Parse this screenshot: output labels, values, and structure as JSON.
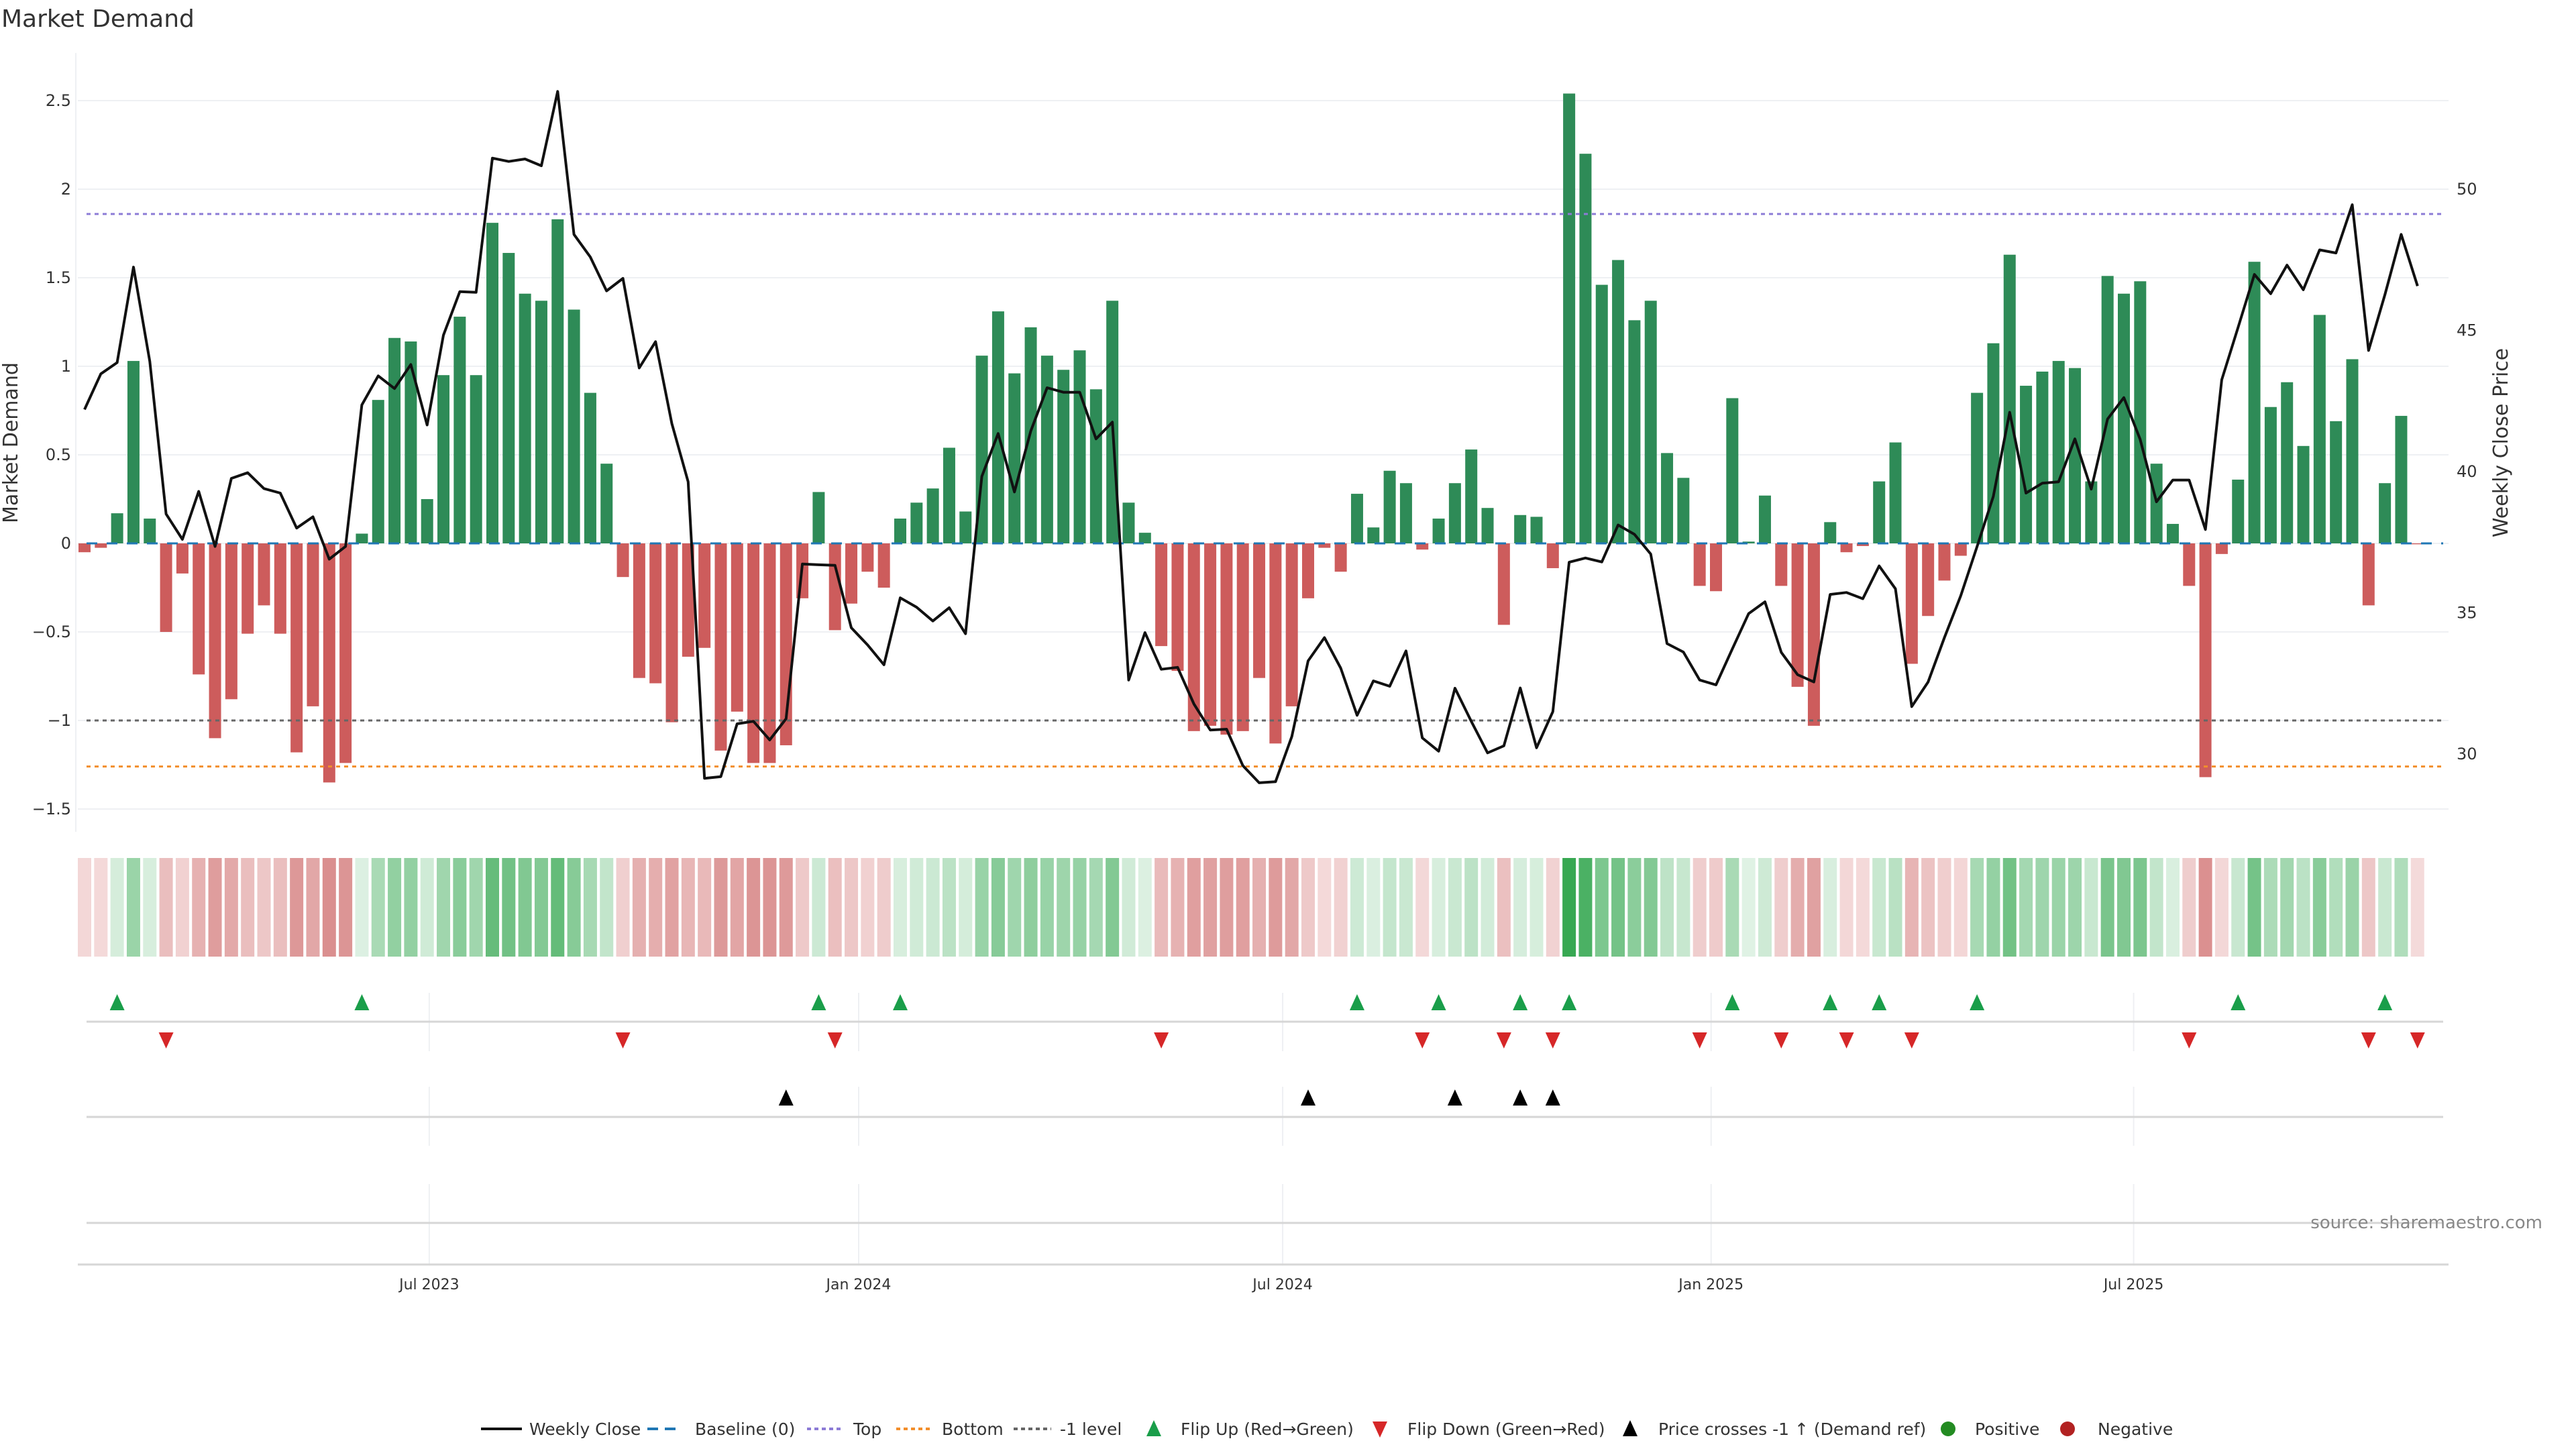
{
  "chart_data": {
    "type": "bar",
    "title": "Market Demand",
    "ylabel": "Market Demand",
    "y2label": "Weekly Close Price",
    "ylim": [
      -1.62,
      2.78
    ],
    "y2lim": [
      27.5,
      54.3
    ],
    "yticks": [
      {
        "value": 2.5,
        "label": "2.5"
      },
      {
        "value": 2,
        "label": "2"
      },
      {
        "value": 1.5,
        "label": "1.5"
      },
      {
        "value": 1,
        "label": "1"
      },
      {
        "value": 0.5,
        "label": "0.5"
      },
      {
        "value": 0,
        "label": "0"
      },
      {
        "value": -0.5,
        "label": "−0.5"
      },
      {
        "value": -1,
        "label": "−1"
      },
      {
        "value": -1.5,
        "label": "−1.5"
      }
    ],
    "y2ticks": [
      {
        "value": 50,
        "label": "50"
      },
      {
        "value": 45,
        "label": "45"
      },
      {
        "value": 40,
        "label": "40"
      },
      {
        "value": 35,
        "label": "35"
      },
      {
        "value": 30,
        "label": "30"
      }
    ],
    "x_ticks": [
      {
        "week_index": 21.13,
        "label": "Jul 2023"
      },
      {
        "week_index": 47.45,
        "label": "Jan 2024"
      },
      {
        "week_index": 73.44,
        "label": "Jul 2024"
      },
      {
        "week_index": 99.7,
        "label": "Jan 2025"
      },
      {
        "week_index": 125.6,
        "label": "Jul 2025"
      }
    ],
    "grid": true,
    "reference_lines": {
      "baseline": 0,
      "top": 1.86,
      "bottom": -1.26,
      "minus_one": -1
    },
    "series": [
      {
        "name": "Market Demand",
        "kind": "bar",
        "values": [
          -0.05,
          -0.025,
          0.17,
          1.03,
          0.14,
          -0.5,
          -0.17,
          -0.74,
          -1.1,
          -0.88,
          -0.51,
          -0.35,
          -0.51,
          -1.18,
          -0.92,
          -1.35,
          -1.24,
          0.055,
          0.81,
          1.16,
          1.14,
          0.25,
          0.95,
          1.28,
          0.95,
          1.81,
          1.64,
          1.41,
          1.37,
          1.83,
          1.32,
          0.85,
          0.45,
          -0.19,
          -0.76,
          -0.79,
          -1.01,
          -0.64,
          -0.59,
          -1.17,
          -0.95,
          -1.24,
          -1.24,
          -1.14,
          -0.31,
          0.29,
          -0.49,
          -0.34,
          -0.16,
          -0.25,
          0.14,
          0.23,
          0.31,
          0.54,
          0.18,
          1.06,
          1.31,
          0.96,
          1.22,
          1.06,
          0.98,
          1.09,
          0.87,
          1.37,
          0.23,
          0.06,
          -0.58,
          -0.72,
          -1.06,
          -1.03,
          -1.08,
          -1.06,
          -0.76,
          -1.13,
          -0.92,
          -0.31,
          -0.025,
          -0.16,
          0.28,
          0.09,
          0.41,
          0.34,
          -0.035,
          0.14,
          0.34,
          0.53,
          0.2,
          -0.46,
          0.16,
          0.15,
          -0.14,
          2.54,
          2.2,
          1.46,
          1.6,
          1.26,
          1.37,
          0.51,
          0.37,
          -0.24,
          -0.27,
          0.82,
          0.01,
          0.27,
          -0.24,
          -0.81,
          -1.03,
          0.12,
          -0.05,
          -0.015,
          0.35,
          0.57,
          -0.68,
          -0.41,
          -0.21,
          -0.07,
          0.85,
          1.13,
          1.63,
          0.89,
          0.97,
          1.03,
          0.99,
          0.35,
          1.51,
          1.41,
          1.48,
          0.45,
          0.11,
          -0.24,
          -1.32,
          -0.06,
          0.36,
          1.59,
          0.77,
          0.91,
          0.55,
          1.29,
          0.69,
          1.04,
          -0.35,
          0.34,
          0.72,
          -0.005
        ]
      },
      {
        "name": "Weekly Close",
        "kind": "line",
        "axis": "right",
        "values": [
          42.2,
          43.46,
          43.86,
          47.24,
          43.9,
          38.5,
          37.6,
          39.3,
          37.35,
          39.76,
          39.96,
          39.4,
          39.24,
          38.0,
          38.4,
          36.9,
          37.35,
          42.36,
          43.39,
          42.94,
          43.79,
          41.65,
          44.83,
          46.37,
          46.35,
          51.1,
          50.98,
          51.07,
          50.83,
          53.46,
          48.4,
          47.6,
          46.4,
          46.84,
          43.67,
          44.6,
          41.7,
          39.64,
          29.14,
          29.2,
          31.07,
          31.16,
          30.5,
          31.25,
          36.73,
          36.7,
          36.68,
          34.47,
          33.86,
          33.16,
          35.53,
          35.2,
          34.71,
          35.18,
          34.26,
          39.83,
          41.35,
          39.28,
          41.44,
          42.97,
          42.81,
          42.81,
          41.16,
          41.75,
          32.62,
          34.3,
          33.0,
          33.07,
          31.77,
          30.85,
          30.88,
          29.59,
          28.98,
          29.02,
          30.62,
          33.3,
          34.12,
          33.04,
          31.37,
          32.59,
          32.4,
          33.65,
          30.57,
          30.1,
          32.33,
          31.16,
          30.04,
          30.29,
          32.34,
          30.22,
          31.5,
          36.79,
          36.94,
          36.8,
          38.11,
          37.78,
          37.08,
          33.91,
          33.61,
          32.62,
          32.45,
          33.72,
          34.97,
          35.39,
          33.6,
          32.81,
          32.55,
          35.65,
          35.72,
          35.5,
          36.66,
          35.85,
          31.68,
          32.55,
          34.12,
          35.6,
          37.34,
          39.12,
          42.1,
          39.24,
          39.59,
          39.64,
          41.16,
          39.38,
          41.86,
          42.62,
          41.14,
          38.93,
          39.7,
          39.7,
          37.95,
          43.25,
          45.1,
          46.98,
          46.3,
          47.31,
          46.44,
          47.85,
          47.74,
          49.45,
          44.29,
          46.26,
          48.4,
          46.57
        ]
      }
    ],
    "flip_up_weeks": [
      2,
      17,
      45,
      50,
      78,
      83,
      88,
      91,
      101,
      107,
      110,
      116,
      132,
      141
    ],
    "flip_down_weeks": [
      5,
      33,
      46,
      66,
      82,
      87,
      90,
      99,
      104,
      108,
      112,
      129,
      140,
      143
    ],
    "price_cross_weeks": [
      43,
      75,
      84,
      88,
      90
    ],
    "legend_position": "bottom-center",
    "legend": [
      {
        "key": "weekly_close",
        "label": "Weekly Close"
      },
      {
        "key": "baseline",
        "label": "Baseline (0)"
      },
      {
        "key": "top",
        "label": "Top"
      },
      {
        "key": "bottom",
        "label": "Bottom"
      },
      {
        "key": "minus_one",
        "label": "-1 level"
      },
      {
        "key": "flip_up",
        "label": "Flip Up (Red→Green)"
      },
      {
        "key": "flip_down",
        "label": "Flip Down (Green→Red)"
      },
      {
        "key": "price_cross",
        "label": "Price crosses -1 ↑ (Demand ref)"
      },
      {
        "key": "positive",
        "label": "Positive"
      },
      {
        "key": "negative",
        "label": "Negative"
      }
    ],
    "source": "source: sharemaestro.com"
  },
  "colors": {
    "positive_bar": "#2e8b57",
    "negative_bar": "#cd5c5c",
    "price_line": "#111111",
    "baseline": "#1f77b4",
    "top": "#8c7bd6",
    "bottom": "#f28e2b",
    "minus_one": "#666666",
    "flip_up": "#1a9e4a",
    "flip_down": "#d62728",
    "price_cross": "#000000",
    "positive_dot": "#238b22",
    "negative_dot": "#b22222"
  }
}
